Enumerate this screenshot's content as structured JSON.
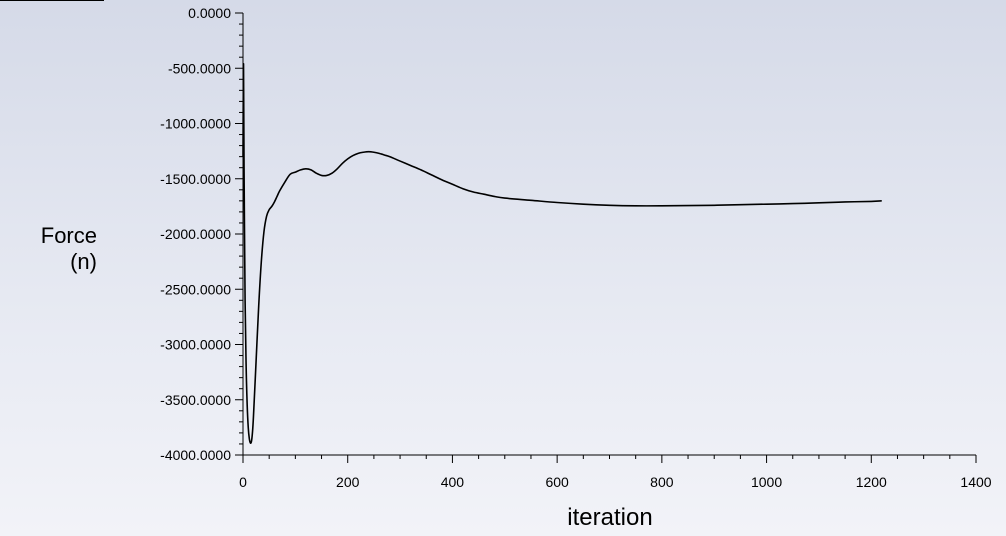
{
  "chart_data": {
    "type": "line",
    "ylabel_lines": [
      "Force",
      "(n)"
    ],
    "xlabel": "iteration",
    "xlim": [
      0,
      1400
    ],
    "ylim": [
      -4000,
      0
    ],
    "x_ticks": [
      0,
      200,
      400,
      600,
      800,
      1000,
      1200,
      1400
    ],
    "x_tick_labels": [
      "0",
      "200",
      "400",
      "600",
      "800",
      "1000",
      "1200",
      "1400"
    ],
    "y_ticks": [
      0,
      -500,
      -1000,
      -1500,
      -2000,
      -2500,
      -3000,
      -3500,
      -4000
    ],
    "y_tick_labels": [
      "0.0000",
      "-500.0000",
      "-1000.0000",
      "-1500.0000",
      "-2000.0000",
      "-2500.0000",
      "-3000.0000",
      "-3500.0000",
      "-4000.0000"
    ],
    "grid": false,
    "line_color": "#000000",
    "series": [
      {
        "x": [
          0,
          1,
          2,
          4,
          6,
          8,
          10,
          12,
          14,
          16,
          18,
          20,
          25,
          30,
          35,
          40,
          45,
          50,
          55,
          60,
          65,
          70,
          80,
          90,
          100,
          110,
          120,
          130,
          140,
          150,
          160,
          170,
          180,
          190,
          200,
          210,
          220,
          230,
          240,
          250,
          260,
          270,
          280,
          300,
          320,
          340,
          360,
          380,
          400,
          420,
          440,
          460,
          480,
          500,
          550,
          600,
          650,
          700,
          750,
          800,
          850,
          900,
          950,
          1000,
          1050,
          1100,
          1150,
          1200,
          1220
        ],
        "y": [
          -1300,
          -460,
          -1400,
          -2600,
          -3200,
          -3550,
          -3750,
          -3850,
          -3890,
          -3880,
          -3800,
          -3650,
          -3150,
          -2650,
          -2250,
          -1980,
          -1840,
          -1780,
          -1750,
          -1710,
          -1660,
          -1610,
          -1530,
          -1460,
          -1440,
          -1420,
          -1410,
          -1420,
          -1450,
          -1470,
          -1470,
          -1450,
          -1410,
          -1360,
          -1320,
          -1290,
          -1270,
          -1260,
          -1255,
          -1260,
          -1270,
          -1285,
          -1300,
          -1340,
          -1380,
          -1420,
          -1465,
          -1510,
          -1550,
          -1590,
          -1620,
          -1640,
          -1660,
          -1675,
          -1695,
          -1715,
          -1730,
          -1740,
          -1745,
          -1745,
          -1743,
          -1740,
          -1735,
          -1730,
          -1725,
          -1718,
          -1710,
          -1705,
          -1700
        ]
      }
    ]
  }
}
